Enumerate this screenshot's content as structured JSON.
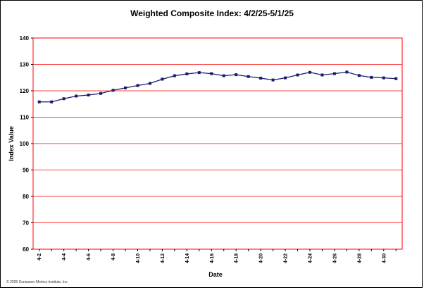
{
  "chart_data": {
    "type": "line",
    "title": "Weighted Composite Index: 4/2/25-5/1/25",
    "xlabel": "Date",
    "ylabel": "Index Value",
    "ylim": [
      60,
      140
    ],
    "yticks": [
      60,
      70,
      80,
      90,
      100,
      110,
      120,
      130,
      140
    ],
    "grid": true,
    "legend": "none",
    "x": [
      "4-2",
      "4-3",
      "4-4",
      "4-5",
      "4-6",
      "4-7",
      "4-8",
      "4-9",
      "4-10",
      "4-11",
      "4-12",
      "4-13",
      "4-14",
      "4-15",
      "4-16",
      "4-17",
      "4-18",
      "4-19",
      "4-20",
      "4-21",
      "4-22",
      "4-23",
      "4-24",
      "4-25",
      "4-26",
      "4-27",
      "4-28",
      "4-29",
      "4-30",
      "5-1"
    ],
    "tick_labels": [
      "4-2",
      "",
      "4-4",
      "",
      "4-6",
      "",
      "4-8",
      "",
      "4-10",
      "",
      "4-12",
      "",
      "4-14",
      "",
      "4-16",
      "",
      "4-18",
      "",
      "4-20",
      "",
      "4-22",
      "",
      "4-24",
      "",
      "4-26",
      "",
      "4-28",
      "",
      "4-30",
      ""
    ],
    "series": [
      {
        "values": [
          115.8,
          115.8,
          117.0,
          118.0,
          118.4,
          119.0,
          120.2,
          121.1,
          122.0,
          122.8,
          124.4,
          125.7,
          126.4,
          126.9,
          126.5,
          125.7,
          126.1,
          125.4,
          124.8,
          124.1,
          124.9,
          126.0,
          127.0,
          126.0,
          126.5,
          127.1,
          125.8,
          125.1,
          124.9,
          124.6
        ]
      }
    ],
    "colors": {
      "line": "#1a1a6e",
      "marker": "#1a1a6e",
      "grid": "#ff0000",
      "plot_border": "#ff0000"
    },
    "footer": "© 2025 Consumer Metrics Institute, Inc."
  }
}
